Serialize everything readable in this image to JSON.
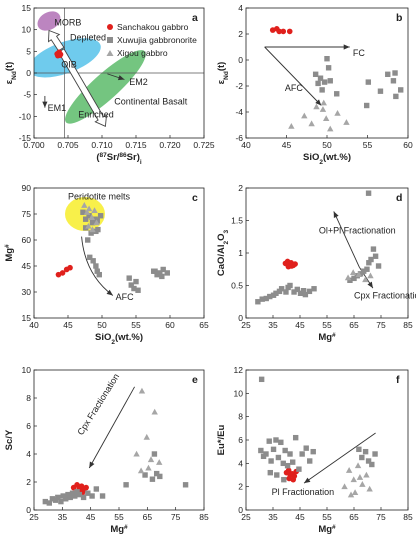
{
  "colors": {
    "sanchakou": "#e0201c",
    "xuwujia": "#8c8c8c",
    "xigou": "#a6a6a6",
    "morb": "#b070b5",
    "oib": "#56c2ea",
    "continental": "#5cbb6a",
    "peridotite": "#f7ee36",
    "arrow": "#333333"
  },
  "legend": [
    {
      "key": "sanchakou",
      "label": "Sanchakou gabbro",
      "marker": "circle"
    },
    {
      "key": "xuwujia",
      "label": "Xuwujia gabbronorite",
      "marker": "square"
    },
    {
      "key": "xigou",
      "label": "Xigou gabbro",
      "marker": "triangle"
    }
  ],
  "chart_data": [
    {
      "id": "a",
      "letter": "a",
      "type": "scatter",
      "xlabel": "(87Sr/86Sr)i",
      "ylabel": "εNd(t)",
      "xlim": [
        0.7,
        0.725
      ],
      "ylim": [
        -15,
        15
      ],
      "xticks": [
        "0.700",
        "0.705",
        "0.710",
        "0.715",
        "0.720",
        "0.725"
      ],
      "yticks": [
        15,
        10,
        5,
        0,
        -5,
        -10,
        -15
      ],
      "refline": {
        "x": 0.7045,
        "y": 0
      },
      "fields": [
        {
          "key": "continental",
          "label": "Continental Basalt",
          "cx": 0.7105,
          "cy": -3.2,
          "rx": 0.0078,
          "ry": 3.0,
          "angle": -42
        },
        {
          "key": "oib",
          "label": "OIB",
          "cx": 0.7045,
          "cy": 3.5,
          "rx": 0.0056,
          "ry": 3.6,
          "angle": -20
        },
        {
          "key": "morb",
          "label": "MORB",
          "cx": 0.7022,
          "cy": 12.0,
          "rx": 0.0018,
          "ry": 2.0,
          "angle": -30
        }
      ],
      "field_labels": [
        {
          "text": "MORB",
          "x": 0.703,
          "y": 11.0
        },
        {
          "text": "Depleted",
          "x": 0.7053,
          "y": 7.5
        },
        {
          "text": "OIB",
          "x": 0.704,
          "y": 1.3
        },
        {
          "text": "EM2",
          "x": 0.714,
          "y": -2.8
        },
        {
          "text": "EM1",
          "x": 0.702,
          "y": -8.8
        },
        {
          "text": "Continental Basalt",
          "x": 0.7118,
          "y": -7.3
        },
        {
          "text": "Enriched",
          "x": 0.7065,
          "y": -10.3
        }
      ],
      "series": [
        {
          "name": "Sanchakou gabbro",
          "key": "sanchakou",
          "marker": "circle",
          "x": [
            0.7034,
            0.7036,
            0.7038,
            0.7037,
            0.7035,
            0.7039
          ],
          "y": [
            4.4,
            4.6,
            4.1,
            4.8,
            4.0,
            4.3
          ]
        }
      ]
    },
    {
      "id": "b",
      "letter": "b",
      "type": "scatter",
      "xlabel": "SiO2(wt.%)",
      "ylabel": "εNd(t)",
      "xlim": [
        40,
        60
      ],
      "ylim": [
        -6,
        4
      ],
      "xticks": [
        40,
        45,
        50,
        55,
        60
      ],
      "yticks": [
        4,
        2,
        0,
        -2,
        -4,
        -6
      ],
      "annotations": [
        {
          "text": "FC",
          "x": 53.2,
          "y": 0.3
        },
        {
          "text": "AFC",
          "x": 44.8,
          "y": -2.4
        }
      ],
      "series": [
        {
          "name": "Sanchakou gabbro",
          "key": "sanchakou",
          "marker": "circle",
          "x": [
            43.3,
            43.8,
            44.1,
            44.6,
            45.4
          ],
          "y": [
            2.3,
            2.4,
            2.2,
            2.2,
            2.2
          ]
        },
        {
          "name": "Xuwujia gabbronorite",
          "key": "xuwujia",
          "marker": "square",
          "x": [
            48.6,
            48.9,
            49.2,
            49.4,
            49.7,
            50.0,
            50.2,
            50.4,
            51.2,
            55.1,
            56.6,
            57.5,
            58.2,
            58.4,
            59.1,
            58.5,
            54.9
          ],
          "y": [
            -1.1,
            -1.8,
            -1.4,
            -2.3,
            -1.7,
            0.1,
            -0.6,
            -1.6,
            -2.6,
            -1.7,
            -2.4,
            -1.1,
            -1.6,
            -1.0,
            -2.3,
            -2.8,
            -3.5
          ]
        },
        {
          "name": "Xigou gabbro",
          "key": "xigou",
          "marker": "triangle",
          "x": [
            45.6,
            47.2,
            48.1,
            49.5,
            49.9,
            50.4,
            51.3,
            48.7,
            49.6,
            52.4
          ],
          "y": [
            -5.1,
            -4.3,
            -4.9,
            -3.8,
            -4.5,
            -5.3,
            -4.1,
            -3.6,
            -3.3,
            -4.8
          ]
        }
      ]
    },
    {
      "id": "c",
      "letter": "c",
      "type": "scatter",
      "xlabel": "SiO2(wt.%)",
      "ylabel": "Mg#",
      "xlim": [
        40,
        65
      ],
      "ylim": [
        15,
        90
      ],
      "xticks": [
        40,
        45,
        50,
        55,
        60,
        65
      ],
      "yticks": [
        15,
        30,
        45,
        60,
        75,
        90
      ],
      "annotations": [
        {
          "text": "Peridotite melts",
          "x": 45.0,
          "y": 83.5
        },
        {
          "text": "AFC",
          "x": 52.0,
          "y": 25.5
        }
      ],
      "series": [
        {
          "name": "Sanchakou gabbro",
          "key": "sanchakou",
          "marker": "circle",
          "x": [
            43.6,
            44.2,
            44.8,
            45.3
          ],
          "y": [
            40,
            41,
            43,
            44
          ]
        },
        {
          "name": "Xuwujia gabbronorite",
          "key": "xuwujia",
          "marker": "square",
          "x": [
            47.2,
            47.6,
            48.1,
            48.6,
            49.0,
            49.3,
            49.8,
            47.6,
            47.9,
            48.4,
            48.8,
            49.1,
            49.4,
            48.2,
            48.7,
            49.1,
            49.3,
            49.6,
            54.0,
            54.3,
            54.7,
            55.0,
            55.3,
            57.6,
            58.1,
            58.5,
            59.0,
            59.6,
            57.8,
            58.8
          ],
          "y": [
            76,
            72,
            74,
            70,
            72,
            71,
            74,
            67,
            60,
            64,
            71,
            65,
            66,
            50,
            48,
            45,
            42,
            40,
            38,
            34,
            32,
            36,
            31,
            42,
            40,
            41,
            43,
            41,
            42,
            39
          ]
        },
        {
          "name": "Xigou gabbro",
          "key": "xigou",
          "marker": "triangle",
          "x": [
            47.4,
            47.8,
            48.1,
            48.5,
            48.9,
            49.2,
            48.0,
            48.6
          ],
          "y": [
            80,
            76,
            78,
            73,
            77,
            70,
            68,
            66
          ]
        }
      ]
    },
    {
      "id": "d",
      "letter": "d",
      "type": "scatter",
      "xlabel": "Mg#",
      "ylabel": "CaO/Al2O3",
      "xlim": [
        25,
        85
      ],
      "ylim": [
        0,
        2.0
      ],
      "xticks": [
        25,
        35,
        45,
        55,
        65,
        75,
        85
      ],
      "yticks": [
        2.0,
        1.5,
        1.0,
        0.5,
        0.0
      ],
      "annotations": [
        {
          "text": "Ol+Pl Fractionation",
          "x": 52.0,
          "y": 1.3
        },
        {
          "text": "Cpx Fractionation",
          "x": 65.0,
          "y": 0.3
        }
      ],
      "series": [
        {
          "name": "Sanchakou gabbro",
          "key": "sanchakou",
          "marker": "circle",
          "x": [
            39.6,
            40.4,
            41.1,
            41.7,
            42.5,
            43.2,
            40.7,
            41.9
          ],
          "y": [
            0.84,
            0.87,
            0.82,
            0.85,
            0.81,
            0.83,
            0.79,
            0.8
          ]
        },
        {
          "name": "Xuwujia gabbronorite",
          "key": "xuwujia",
          "marker": "square",
          "x": [
            29.4,
            31.0,
            32.5,
            33.8,
            35.2,
            36.1,
            37.4,
            38.2,
            39.8,
            40.6,
            41.3,
            42.8,
            44.0,
            45.2,
            46.3,
            47.0,
            48.5,
            50.2,
            63.5,
            65.0,
            66.2,
            67.4,
            68.6,
            69.8,
            70.5,
            71.3,
            72.2,
            73.0,
            74.1,
            70.4
          ],
          "y": [
            0.25,
            0.29,
            0.3,
            0.33,
            0.35,
            0.38,
            0.41,
            0.45,
            0.4,
            0.47,
            0.5,
            0.4,
            0.44,
            0.38,
            0.42,
            0.36,
            0.41,
            0.45,
            0.58,
            0.61,
            0.65,
            0.68,
            0.72,
            0.75,
            0.85,
            0.9,
            1.06,
            0.95,
            0.8,
            1.92
          ]
        },
        {
          "name": "Xigou gabbro",
          "key": "xigou",
          "marker": "triangle",
          "x": [
            62.8,
            64.7,
            66.8,
            69.2,
            71.1
          ],
          "y": [
            0.62,
            0.7,
            0.67,
            0.59,
            0.65
          ]
        }
      ]
    },
    {
      "id": "e",
      "letter": "e",
      "type": "scatter",
      "xlabel": "Mg#",
      "ylabel": "Sc/Y",
      "xlim": [
        25,
        85
      ],
      "ylim": [
        0,
        10
      ],
      "xticks": [
        25,
        35,
        45,
        55,
        65,
        75,
        85
      ],
      "yticks": [
        10,
        8,
        6,
        4,
        2,
        0
      ],
      "annotations": [
        {
          "text": "Cpx Fractionation",
          "x": 42.0,
          "y": 5.3,
          "rotate": -58
        }
      ],
      "series": [
        {
          "name": "Sanchakou gabbro",
          "key": "sanchakou",
          "marker": "circle",
          "x": [
            39.0,
            40.2,
            41.0,
            41.8,
            42.5,
            43.4,
            40.6,
            42.0
          ],
          "y": [
            1.6,
            1.8,
            1.5,
            1.7,
            1.4,
            1.6,
            1.3,
            1.2
          ]
        },
        {
          "name": "Xuwujia gabbronorite",
          "key": "xuwujia",
          "marker": "square",
          "x": [
            29.0,
            30.4,
            31.5,
            32.6,
            33.4,
            34.5,
            35.3,
            36.2,
            37.0,
            37.8,
            38.6,
            39.4,
            40.2,
            41.0,
            42.5,
            44.0,
            45.5,
            47.0,
            49.2,
            57.5,
            64.2,
            66.8,
            67.5,
            68.3,
            69.4,
            78.5
          ],
          "y": [
            0.6,
            0.5,
            0.8,
            0.7,
            0.9,
            0.6,
            1.0,
            0.8,
            1.1,
            0.9,
            1.2,
            1.0,
            1.3,
            1.1,
            0.9,
            1.2,
            1.0,
            1.5,
            1.0,
            1.8,
            2.5,
            2.2,
            4.0,
            2.6,
            2.4,
            1.8
          ]
        },
        {
          "name": "Xigou gabbro",
          "key": "xigou",
          "marker": "triangle",
          "x": [
            61.2,
            63.1,
            64.8,
            66.3,
            67.6,
            69.2,
            62.8,
            65.4
          ],
          "y": [
            4.0,
            8.5,
            5.2,
            3.6,
            7.0,
            3.4,
            2.8,
            3.0
          ]
        }
      ]
    },
    {
      "id": "f",
      "letter": "f",
      "type": "scatter",
      "xlabel": "Mg#",
      "ylabel": "Eu*/Eu",
      "xlim": [
        25,
        85
      ],
      "ylim": [
        0,
        12
      ],
      "xticks": [
        25,
        35,
        45,
        55,
        65,
        75,
        85
      ],
      "yticks": [
        12,
        10,
        8,
        6,
        4,
        2,
        0
      ],
      "annotations": [
        {
          "text": "Pl Fractionation",
          "x": 34.5,
          "y": 1.3
        }
      ],
      "series": [
        {
          "name": "Sanchakou gabbro",
          "key": "sanchakou",
          "marker": "circle",
          "x": [
            40.0,
            40.8,
            41.4,
            42.1,
            42.9,
            43.6,
            41.0,
            42.5
          ],
          "y": [
            3.2,
            3.4,
            3.0,
            3.1,
            2.9,
            3.3,
            2.7,
            2.6
          ]
        },
        {
          "name": "Xuwujia gabbronorite",
          "key": "xuwujia",
          "marker": "square",
          "x": [
            30.5,
            31.5,
            32.4,
            33.6,
            34.3,
            35.2,
            36.1,
            37.0,
            37.9,
            38.8,
            39.5,
            40.4,
            41.3,
            42.3,
            43.4,
            44.6,
            45.8,
            47.3,
            48.6,
            49.9,
            30.8,
            34.0,
            36.4,
            39.0,
            66.8,
            67.9,
            69.3,
            70.4,
            71.6,
            72.8
          ],
          "y": [
            5.1,
            4.6,
            4.8,
            5.9,
            4.2,
            5.2,
            6.0,
            4.5,
            5.8,
            4.0,
            5.1,
            3.8,
            4.8,
            4.1,
            6.2,
            3.5,
            4.8,
            5.3,
            4.2,
            5.0,
            11.2,
            3.2,
            3.0,
            2.6,
            5.2,
            4.5,
            5.0,
            4.2,
            3.9,
            4.8
          ]
        },
        {
          "name": "Xigou gabbro",
          "key": "xigou",
          "marker": "triangle",
          "x": [
            61.5,
            63.2,
            64.9,
            66.5,
            68.1,
            69.6,
            70.8,
            65.4,
            67.2,
            63.9
          ],
          "y": [
            2.0,
            3.4,
            2.6,
            3.8,
            2.2,
            3.0,
            1.8,
            1.5,
            2.8,
            1.3
          ]
        }
      ]
    }
  ]
}
